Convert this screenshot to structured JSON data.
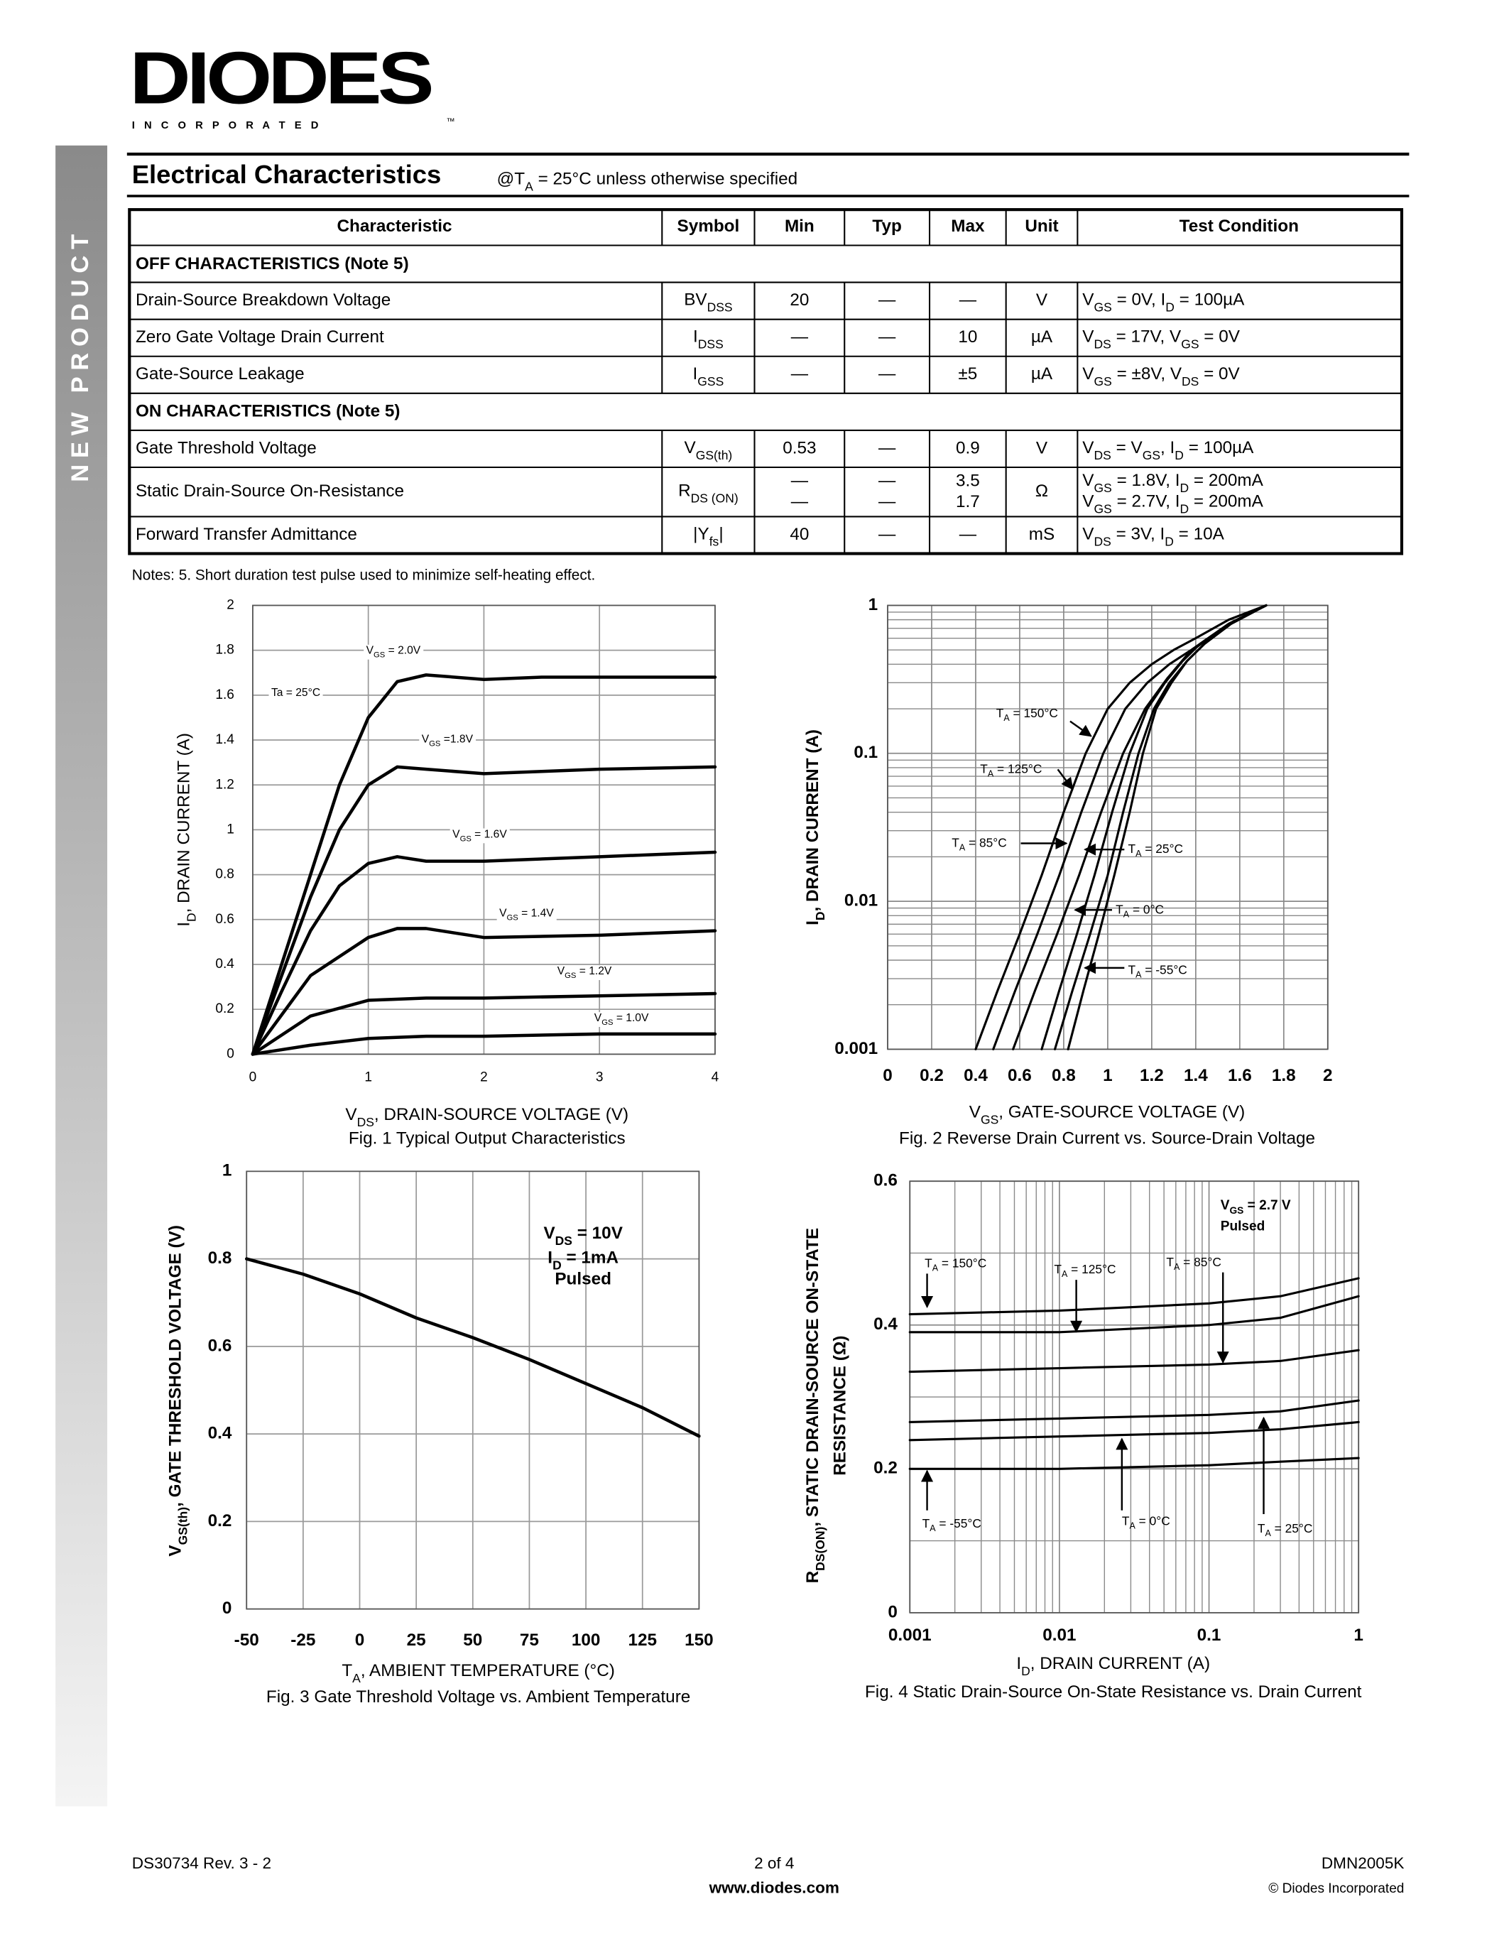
{
  "header": {
    "logo": "DIODES",
    "logo_sub": "I N C O R P O R A T E D",
    "tm": "™",
    "side_banner": "NEW PRODUCT"
  },
  "section": {
    "title": "Electrical Characteristics",
    "condition": [
      "@T",
      {
        "sub": "A"
      },
      " = 25°C unless otherwise specified"
    ]
  },
  "table": {
    "columns": [
      "Characteristic",
      "Symbol",
      "Min",
      "Typ",
      "Max",
      "Unit",
      "Test Condition"
    ],
    "rows": [
      {
        "group": "OFF CHARACTERISTICS (Note 5)"
      },
      {
        "cells": [
          "Drain-Source Breakdown Voltage",
          [
            "BV",
            {
              "sub": "DSS"
            }
          ],
          20,
          "—",
          "—",
          "V",
          [
            "V",
            {
              "sub": "GS"
            },
            " = 0V, I",
            {
              "sub": "D"
            },
            " = 100µA"
          ]
        ]
      },
      {
        "cells": [
          "Zero Gate Voltage Drain Current",
          [
            "I",
            {
              "sub": "DSS"
            }
          ],
          "—",
          "—",
          10,
          "µA",
          [
            "V",
            {
              "sub": "DS"
            },
            " = 17V, V",
            {
              "sub": "GS"
            },
            " = 0V"
          ]
        ]
      },
      {
        "cells": [
          "Gate-Source Leakage",
          [
            "I",
            {
              "sub": "GSS"
            }
          ],
          "—",
          "—",
          "±5",
          "µA",
          [
            "V",
            {
              "sub": "GS"
            },
            " = ±8V, V",
            {
              "sub": "DS"
            },
            " = 0V"
          ]
        ]
      },
      {
        "group": "ON CHARACTERISTICS (Note 5)"
      },
      {
        "cells": [
          "Gate Threshold Voltage",
          [
            "V",
            {
              "sub": "GS(th)"
            }
          ],
          0.53,
          "—",
          0.9,
          "V",
          [
            "V",
            {
              "sub": "DS"
            },
            " = V",
            {
              "sub": "GS"
            },
            ", I",
            {
              "sub": "D"
            },
            " = 100µA"
          ]
        ]
      },
      {
        "cells": [
          "Static Drain-Source On-Resistance",
          [
            "R",
            {
              "sub": "DS (ON)"
            }
          ],
          {
            "lines": [
              "—",
              "—"
            ]
          },
          {
            "lines": [
              "—",
              "—"
            ]
          },
          {
            "lines": [
              3.5,
              1.7
            ]
          },
          "Ω",
          {
            "lines": [
              [
                "V",
                {
                  "sub": "GS"
                },
                " = 1.8V, I",
                {
                  "sub": "D"
                },
                " = 200mA"
              ],
              [
                "V",
                {
                  "sub": "GS"
                },
                " = 2.7V, I",
                {
                  "sub": "D"
                },
                " = 200mA"
              ]
            ]
          }
        ]
      },
      {
        "cells": [
          "Forward Transfer Admittance",
          [
            "|Y",
            {
              "sub": "fs"
            },
            "|"
          ],
          40,
          "—",
          "—",
          "mS",
          [
            "V",
            {
              "sub": "DS"
            },
            " = 3V, I",
            {
              "sub": "D"
            },
            " = 10A"
          ]
        ]
      }
    ]
  },
  "notes": "Notes:  5.  Short duration test pulse used to minimize self-heating effect.",
  "chart_data": [
    {
      "type": "line",
      "caption": "Fig. 1  Typical Output Characteristics",
      "xlabel": [
        "V",
        {
          "sub": "DS"
        },
        ", DRAIN-SOURCE VOLTAGE (V)"
      ],
      "ylabel": [
        "I",
        {
          "sub": "D"
        },
        ", DRAIN CURRENT (A)"
      ],
      "xlim": [
        0,
        4
      ],
      "ylim": [
        0,
        2
      ],
      "xticks": [
        0,
        1,
        2,
        3,
        4
      ],
      "yticks": [
        0,
        0.2,
        0.4,
        0.6,
        0.8,
        1,
        1.2,
        1.4,
        1.6,
        1.8,
        2
      ],
      "grid": true,
      "color": "#000000",
      "series": [
        {
          "label": [
            "V",
            {
              "sub": "GS"
            },
            " = 2.0V"
          ],
          "x": [
            0,
            0.25,
            0.5,
            0.75,
            1,
            1.25,
            1.5,
            2,
            2.5,
            3,
            4
          ],
          "values": [
            0,
            0.4,
            0.8,
            1.2,
            1.5,
            1.66,
            1.69,
            1.67,
            1.68,
            1.68,
            1.68
          ]
        },
        {
          "label": [
            "V",
            {
              "sub": "GS"
            },
            " =1.8V"
          ],
          "x": [
            0,
            0.25,
            0.5,
            0.75,
            1,
            1.25,
            1.5,
            2,
            2.5,
            3,
            4
          ],
          "values": [
            0,
            0.35,
            0.7,
            1.0,
            1.2,
            1.28,
            1.27,
            1.25,
            1.26,
            1.27,
            1.28
          ]
        },
        {
          "label": [
            "V",
            {
              "sub": "GS"
            },
            " = 1.6V"
          ],
          "x": [
            0,
            0.25,
            0.5,
            0.75,
            1,
            1.25,
            1.5,
            2,
            3,
            4
          ],
          "values": [
            0,
            0.28,
            0.55,
            0.75,
            0.85,
            0.88,
            0.86,
            0.86,
            0.88,
            0.9
          ]
        },
        {
          "label": [
            "V",
            {
              "sub": "GS"
            },
            " = 1.4V"
          ],
          "x": [
            0,
            0.5,
            1,
            1.25,
            1.5,
            2,
            3,
            4
          ],
          "values": [
            0,
            0.35,
            0.52,
            0.56,
            0.56,
            0.52,
            0.53,
            0.55
          ]
        },
        {
          "label": [
            "V",
            {
              "sub": "GS"
            },
            " = 1.2V"
          ],
          "x": [
            0,
            0.5,
            1,
            1.5,
            2,
            3,
            4
          ],
          "values": [
            0,
            0.17,
            0.24,
            0.25,
            0.25,
            0.26,
            0.27
          ]
        },
        {
          "label": [
            "V",
            {
              "sub": "GS"
            },
            " = 1.0V"
          ],
          "x": [
            0,
            0.5,
            1,
            1.5,
            2,
            3,
            4
          ],
          "values": [
            0,
            0.04,
            0.07,
            0.08,
            0.08,
            0.09,
            0.09
          ]
        }
      ],
      "annotations": [
        "Ta = 25°C"
      ]
    },
    {
      "type": "line",
      "caption": "Fig. 2  Reverse Drain Current vs. Source-Drain Voltage",
      "xlabel": [
        "V",
        {
          "sub": "GS"
        },
        ", GATE-SOURCE VOLTAGE (V)"
      ],
      "ylabel": [
        "I",
        {
          "sub": "D"
        },
        ", DRAIN CURRENT (A)"
      ],
      "xlim": [
        0,
        2
      ],
      "ylim": [
        0.001,
        1
      ],
      "ylog": true,
      "xticks": [
        0,
        0.2,
        0.4,
        0.6,
        0.8,
        1,
        1.2,
        1.4,
        1.6,
        1.8,
        2
      ],
      "yticks": [
        0.001,
        0.01,
        0.1,
        1
      ],
      "yminor": [
        0.002,
        0.003,
        0.004,
        0.005,
        0.006,
        0.007,
        0.008,
        0.009,
        0.02,
        0.03,
        0.04,
        0.05,
        0.06,
        0.07,
        0.08,
        0.09,
        0.2,
        0.3,
        0.4,
        0.5,
        0.6,
        0.7,
        0.8,
        0.9
      ],
      "grid": true,
      "color": "#000000",
      "series": [
        {
          "label": [
            "T",
            {
              "sub": "A"
            },
            " = 150°C"
          ],
          "x": [
            0.4,
            0.5,
            0.6,
            0.7,
            0.8,
            0.9,
            1.0,
            1.1,
            1.2,
            1.3,
            1.4,
            1.55,
            1.72
          ],
          "values": [
            0.001,
            0.0025,
            0.006,
            0.015,
            0.04,
            0.1,
            0.2,
            0.3,
            0.4,
            0.5,
            0.6,
            0.8,
            1
          ]
        },
        {
          "label": [
            "T",
            {
              "sub": "A"
            },
            " = 125°C"
          ],
          "x": [
            0.48,
            0.58,
            0.68,
            0.78,
            0.88,
            0.98,
            1.08,
            1.18,
            1.28,
            1.38,
            1.55,
            1.72
          ],
          "values": [
            0.001,
            0.0025,
            0.006,
            0.015,
            0.04,
            0.1,
            0.2,
            0.3,
            0.4,
            0.5,
            0.75,
            1
          ]
        },
        {
          "label": [
            "T",
            {
              "sub": "A"
            },
            " = 85°C"
          ],
          "x": [
            0.57,
            0.67,
            0.77,
            0.87,
            0.97,
            1.07,
            1.17,
            1.27,
            1.37,
            1.55,
            1.72
          ],
          "values": [
            0.001,
            0.0025,
            0.006,
            0.015,
            0.04,
            0.1,
            0.2,
            0.32,
            0.48,
            0.75,
            1
          ]
        },
        {
          "label": [
            "T",
            {
              "sub": "A"
            },
            " = 25°C"
          ],
          "x": [
            0.7,
            0.78,
            0.86,
            0.94,
            1.02,
            1.1,
            1.18,
            1.26,
            1.34,
            1.42,
            1.55,
            1.72
          ],
          "values": [
            0.001,
            0.0025,
            0.006,
            0.015,
            0.04,
            0.1,
            0.2,
            0.3,
            0.42,
            0.55,
            0.75,
            1
          ]
        },
        {
          "label": [
            "T",
            {
              "sub": "A"
            },
            " = 0°C"
          ],
          "x": [
            0.76,
            0.84,
            0.92,
            1.0,
            1.07,
            1.14,
            1.21,
            1.28,
            1.36,
            1.44,
            1.56,
            1.72
          ],
          "values": [
            0.001,
            0.0025,
            0.006,
            0.015,
            0.04,
            0.1,
            0.2,
            0.3,
            0.42,
            0.55,
            0.75,
            1
          ]
        },
        {
          "label": [
            "T",
            {
              "sub": "A"
            },
            " = -55°C"
          ],
          "x": [
            0.82,
            0.89,
            0.96,
            1.03,
            1.1,
            1.16,
            1.22,
            1.29,
            1.36,
            1.44,
            1.56,
            1.72
          ],
          "values": [
            0.001,
            0.0025,
            0.006,
            0.015,
            0.04,
            0.1,
            0.2,
            0.3,
            0.42,
            0.55,
            0.75,
            1
          ]
        }
      ]
    },
    {
      "type": "line",
      "caption": "Fig. 3  Gate Threshold Voltage vs. Ambient Temperature",
      "xlabel": [
        "T",
        {
          "sub": "A"
        },
        ", AMBIENT TEMPERATURE (°C)"
      ],
      "ylabel": [
        "V",
        {
          "sub": "GS(th)"
        },
        ", GATE THRESHOLD VOLTAGE (V)"
      ],
      "xlim": [
        -50,
        150
      ],
      "ylim": [
        0,
        1
      ],
      "xticks": [
        -50,
        -25,
        0,
        25,
        50,
        75,
        100,
        125,
        150
      ],
      "yticks": [
        0,
        0.2,
        0.4,
        0.6,
        0.8,
        1
      ],
      "grid": true,
      "color": "#000000",
      "series": [
        {
          "x": [
            -50,
            -25,
            0,
            25,
            50,
            75,
            100,
            125,
            150
          ],
          "values": [
            0.8,
            0.765,
            0.72,
            0.665,
            0.62,
            0.57,
            0.515,
            0.46,
            0.395
          ]
        }
      ],
      "annotations": [
        [
          "V",
          {
            "sub": "DS"
          },
          " = 10V"
        ],
        [
          "I",
          {
            "sub": "D"
          },
          " = 1mA"
        ],
        "Pulsed"
      ]
    },
    {
      "type": "line",
      "caption": "Fig. 4 Static Drain-Source On-State Resistance vs. Drain Current",
      "xlabel": [
        "I",
        {
          "sub": "D"
        },
        ", DRAIN CURRENT (A)"
      ],
      "ylabel": [
        "R",
        {
          "sub": "DS(ON)"
        },
        ", STATIC DRAIN-SOURCE ON-STATE"
      ],
      "ylabel2": "RESISTANCE (Ω)",
      "xlim": [
        0.001,
        1
      ],
      "xlog": true,
      "ylim": [
        0,
        0.6
      ],
      "xticks": [
        0.001,
        0.01,
        0.1,
        1
      ],
      "yticks": [
        0,
        0.2,
        0.4,
        0.6
      ],
      "xminor": [
        0.002,
        0.003,
        0.004,
        0.005,
        0.006,
        0.007,
        0.008,
        0.009,
        0.02,
        0.03,
        0.04,
        0.05,
        0.06,
        0.07,
        0.08,
        0.09,
        0.2,
        0.3,
        0.4,
        0.5,
        0.6,
        0.7,
        0.8,
        0.9
      ],
      "yminor": [
        0.1,
        0.3,
        0.5
      ],
      "grid": true,
      "color": "#000000",
      "series": [
        {
          "label": [
            "T",
            {
              "sub": "A"
            },
            " = 150°C"
          ],
          "x": [
            0.001,
            0.01,
            0.1,
            0.3,
            1
          ],
          "values": [
            0.415,
            0.42,
            0.43,
            0.44,
            0.465
          ]
        },
        {
          "label": [
            "T",
            {
              "sub": "A"
            },
            " = 125°C"
          ],
          "x": [
            0.001,
            0.01,
            0.1,
            0.3,
            1
          ],
          "values": [
            0.39,
            0.39,
            0.4,
            0.41,
            0.44
          ]
        },
        {
          "label": [
            "T",
            {
              "sub": "A"
            },
            " = 85°C"
          ],
          "x": [
            0.001,
            0.01,
            0.1,
            0.3,
            1
          ],
          "values": [
            0.335,
            0.34,
            0.345,
            0.35,
            0.365
          ]
        },
        {
          "label": [
            "T",
            {
              "sub": "A"
            },
            " = 25°C"
          ],
          "x": [
            0.001,
            0.01,
            0.1,
            0.3,
            1
          ],
          "values": [
            0.265,
            0.27,
            0.275,
            0.28,
            0.295
          ]
        },
        {
          "label": [
            "T",
            {
              "sub": "A"
            },
            " = 0°C"
          ],
          "x": [
            0.001,
            0.01,
            0.1,
            0.3,
            1
          ],
          "values": [
            0.24,
            0.245,
            0.25,
            0.255,
            0.265
          ]
        },
        {
          "label": [
            "T",
            {
              "sub": "A"
            },
            " = -55°C"
          ],
          "x": [
            0.001,
            0.01,
            0.1,
            0.3,
            1
          ],
          "values": [
            0.2,
            0.2,
            0.205,
            0.21,
            0.215
          ]
        }
      ],
      "annotations": [
        [
          "V",
          {
            "sub": "GS"
          },
          " = 2.7 V"
        ],
        "Pulsed"
      ]
    }
  ],
  "footer": {
    "doc_id": "DS30734 Rev. 3 - 2",
    "page": "2 of 4",
    "website": "www.diodes.com",
    "part": "DMN2005K",
    "copyright": "© Diodes Incorporated"
  }
}
